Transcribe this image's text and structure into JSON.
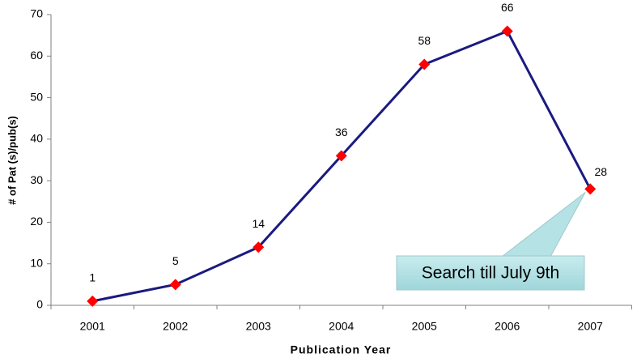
{
  "chart_data": {
    "type": "line",
    "x_label": "Publication Year",
    "y_label": "# of Pat (s)/pub(s)",
    "categories": [
      "2001",
      "2002",
      "2003",
      "2004",
      "2005",
      "2006",
      "2007"
    ],
    "series": [
      {
        "name": "Pat (s)/pub(s)",
        "color": "#1a1a80",
        "marker_color": "#ff0000",
        "values": [
          1,
          5,
          14,
          36,
          58,
          66,
          28
        ]
      }
    ],
    "ylim": [
      0,
      70
    ],
    "yticks": [
      0,
      10,
      20,
      30,
      40,
      50,
      60,
      70
    ],
    "grid": false,
    "annotation": "Search till July 9th"
  }
}
